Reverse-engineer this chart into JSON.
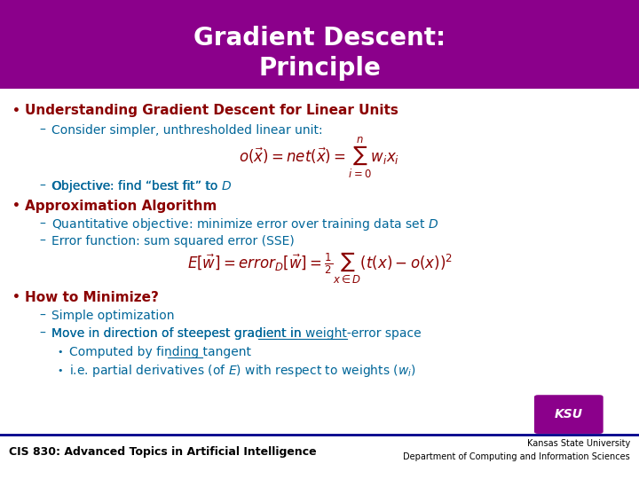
{
  "title_line1": "Gradient Descent:",
  "title_line2": "Principle",
  "title_bg_color": "#8B008B",
  "title_text_color": "#FFFFFF",
  "bg_color": "#FFFFFF",
  "bullet_color": "#8B0000",
  "sub_color": "#006699",
  "footer_line_color": "#00008B",
  "footer_text_left": "CIS 830: Advanced Topics in Artificial Intelligence",
  "footer_text_right1": "Kansas State University",
  "footer_text_right2": "Department of Computing and Information Sciences",
  "bullet1_bold": "Understanding Gradient Descent for Linear Units",
  "sub1_1": "Consider simpler, unthresholded linear unit:",
  "sub1_2": "Objective: find “best fit” to D",
  "bullet2_bold": "Approximation Algorithm",
  "sub2_1": "Quantitative objective: minimize error over training data set D",
  "sub2_2": "Error function: sum squared error (SSE)",
  "bullet3_bold": "How to Minimize?",
  "sub3_1": "Simple optimization",
  "sub3_2": "Move in direction of steepest gradient in weight-error space",
  "sub3_2a": "Computed by finding tangent",
  "sub3_2b": "i.e. partial derivatives (of E) with respect to weights (wᵢ)"
}
